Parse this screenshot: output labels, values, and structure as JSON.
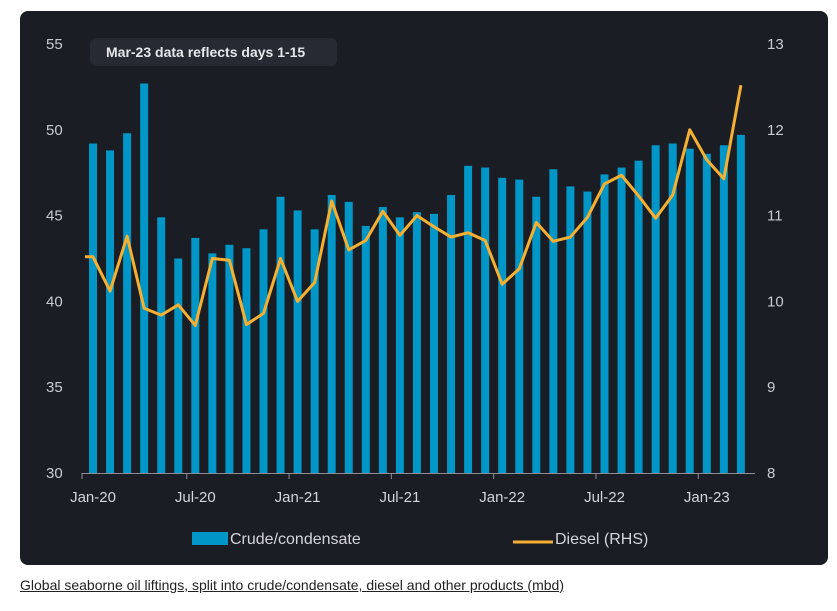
{
  "caption": "Global seaborne oil liftings, split into crude/condensate, diesel and other products (mbd)",
  "chart_data": {
    "type": "bar+line",
    "title": "",
    "annotation": "Mar-23 data reflects days 1-15",
    "categories": [
      "Jan-20",
      "Feb-20",
      "Mar-20",
      "Apr-20",
      "May-20",
      "Jun-20",
      "Jul-20",
      "Aug-20",
      "Sep-20",
      "Oct-20",
      "Nov-20",
      "Dec-20",
      "Jan-21",
      "Feb-21",
      "Mar-21",
      "Apr-21",
      "May-21",
      "Jun-21",
      "Jul-21",
      "Aug-21",
      "Sep-21",
      "Oct-21",
      "Nov-21",
      "Dec-21",
      "Jan-22",
      "Feb-22",
      "Mar-22",
      "Apr-22",
      "May-22",
      "Jun-22",
      "Jul-22",
      "Aug-22",
      "Sep-22",
      "Oct-22",
      "Nov-22",
      "Dec-22",
      "Jan-23",
      "Feb-23",
      "Mar-23"
    ],
    "x_tick_labels": [
      "Jan-20",
      "Jul-20",
      "Jan-21",
      "Jul-21",
      "Jan-22",
      "Jul-22",
      "Jan-23"
    ],
    "series": [
      {
        "name": "Crude/condensate",
        "type": "bar",
        "axis": "left",
        "color": "#0096c7",
        "values": [
          49.2,
          48.8,
          49.8,
          52.7,
          44.9,
          42.5,
          43.7,
          42.8,
          43.3,
          43.1,
          44.2,
          46.1,
          45.3,
          44.2,
          46.2,
          45.8,
          44.4,
          45.5,
          44.9,
          45.2,
          45.1,
          46.2,
          47.9,
          47.8,
          47.2,
          47.1,
          46.1,
          47.7,
          46.7,
          46.4,
          47.4,
          47.8,
          48.2,
          49.1,
          49.2,
          48.9,
          48.6,
          49.1,
          49.7
        ]
      },
      {
        "name": "Diesel (RHS)",
        "type": "line",
        "axis": "right",
        "color": "#f5b031",
        "values": [
          10.52,
          10.12,
          10.76,
          9.92,
          9.84,
          9.96,
          9.72,
          10.5,
          10.48,
          9.73,
          9.86,
          10.5,
          10.0,
          10.22,
          11.17,
          10.6,
          10.71,
          11.05,
          10.77,
          11.0,
          10.87,
          10.75,
          10.8,
          10.71,
          10.2,
          10.38,
          10.92,
          10.7,
          10.75,
          10.98,
          11.37,
          11.47,
          11.23,
          10.97,
          11.24,
          12.0,
          11.65,
          11.43,
          12.52
        ]
      }
    ],
    "y_left": {
      "label": "",
      "ylim": [
        30,
        55
      ],
      "ticks": [
        30,
        35,
        40,
        45,
        50,
        55
      ]
    },
    "y_right": {
      "label": "",
      "ylim": [
        8,
        13
      ],
      "ticks": [
        8,
        9,
        10,
        11,
        12,
        13
      ]
    },
    "grid": false,
    "legend": {
      "position": "bottom",
      "entries": [
        "Crude/condensate",
        "Diesel (RHS)"
      ]
    },
    "colors": {
      "background": "#1b1d25",
      "bar": "#0096c7",
      "line": "#f5b031",
      "text": "#c9cbd1"
    }
  }
}
